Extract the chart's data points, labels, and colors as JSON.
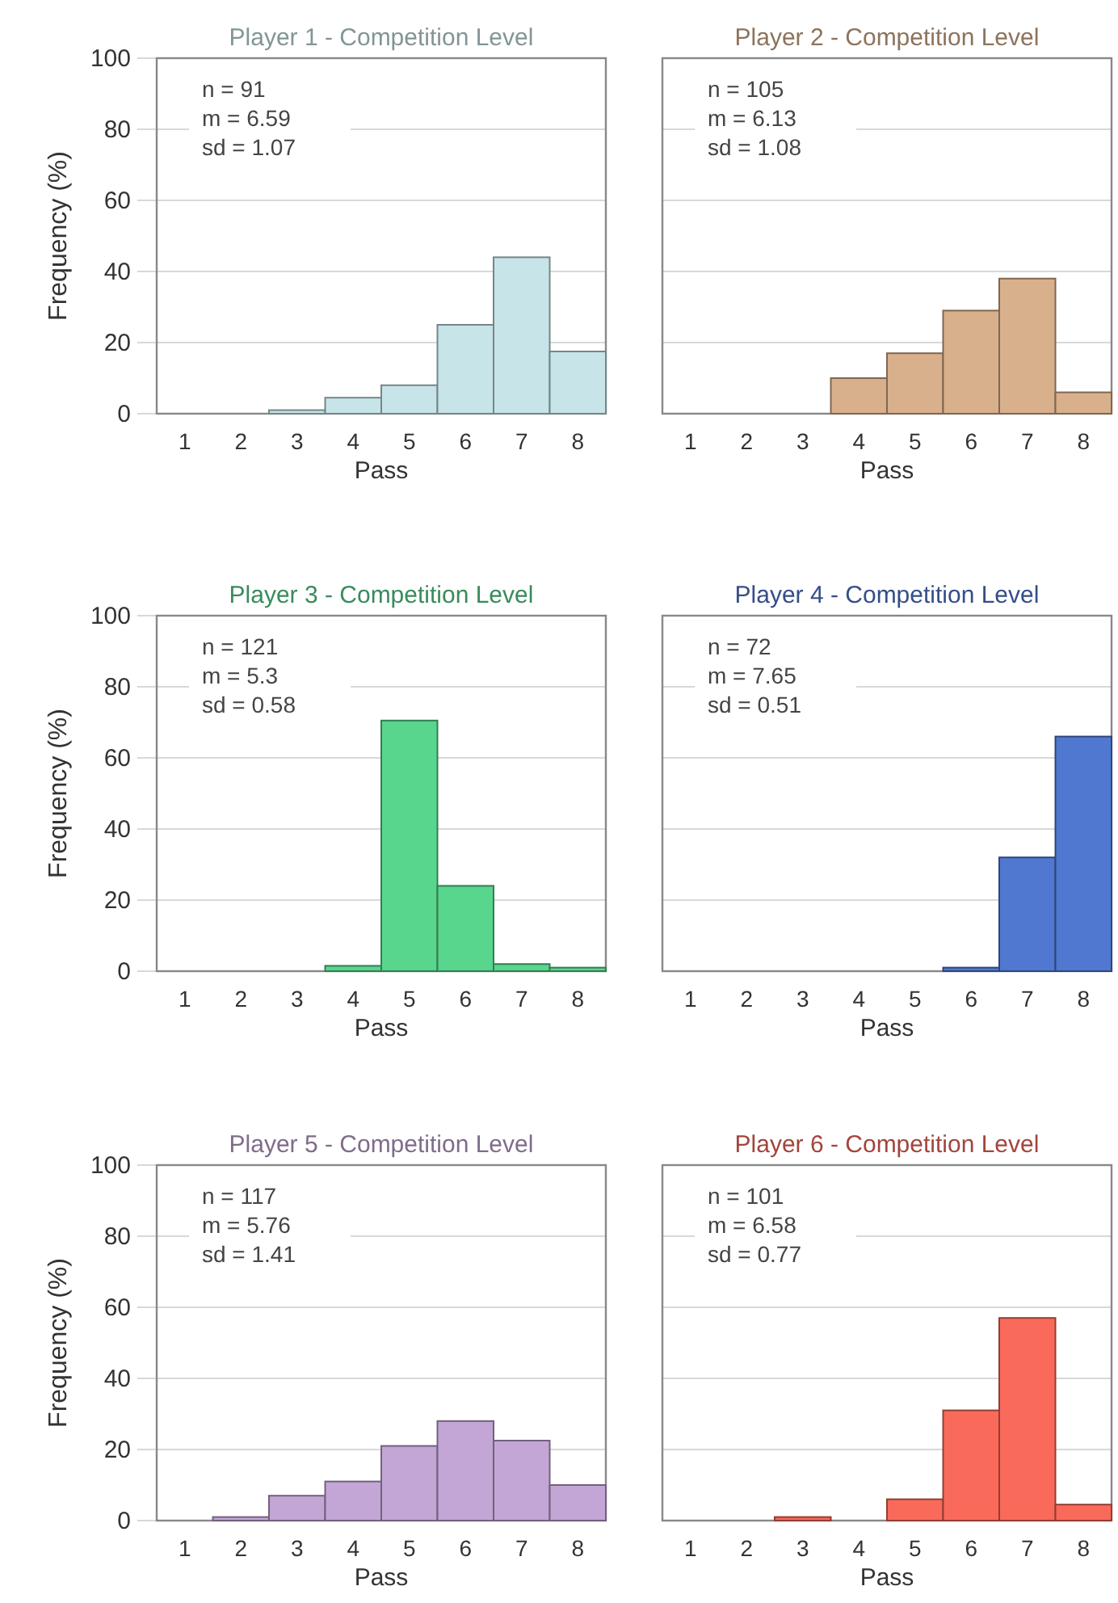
{
  "chart_data": [
    {
      "type": "histogram",
      "title": "Player 1 - Competition Level",
      "xlabel": "Pass",
      "ylabel": "Frequency (%)",
      "bins": [
        0.5,
        1.5,
        2.5,
        3.5,
        4.5,
        5.5,
        6.5,
        7.5,
        8.5
      ],
      "values": [
        0,
        0,
        1,
        4.5,
        8,
        25,
        44,
        17.5
      ],
      "color": "#c7e4e8",
      "xlim": [
        0.5,
        8.5
      ],
      "xticks": [
        1,
        2,
        3,
        4,
        5,
        6,
        7,
        8
      ],
      "ylim": [
        0,
        100
      ],
      "yticks": [
        0,
        20,
        40,
        60,
        80,
        100
      ],
      "grid": "y",
      "annotations": [
        "n = 91",
        "m = 6.59",
        "sd = 1.07"
      ]
    },
    {
      "type": "histogram",
      "title": "Player 2 - Competition Level",
      "xlabel": "Pass",
      "bins": [
        0.5,
        1.5,
        2.5,
        3.5,
        4.5,
        5.5,
        6.5,
        7.5,
        8.5
      ],
      "values": [
        0,
        0,
        0,
        10,
        17,
        29,
        38,
        6
      ],
      "color": "#d9b08c",
      "xlim": [
        0.5,
        8.5
      ],
      "xticks": [
        1,
        2,
        3,
        4,
        5,
        6,
        7,
        8
      ],
      "ylim": [
        0,
        100
      ],
      "yticks": [
        0,
        20,
        40,
        60,
        80,
        100
      ],
      "grid": "y",
      "tick_labels": "x",
      "annotations": [
        "n = 105",
        "m = 6.13",
        "sd = 1.08"
      ]
    },
    {
      "type": "histogram",
      "title": "Player 3 - Competition Level",
      "xlabel": "Pass",
      "ylabel": "Frequency (%)",
      "bins": [
        0.5,
        1.5,
        2.5,
        3.5,
        4.5,
        5.5,
        6.5,
        7.5,
        8.5
      ],
      "values": [
        0,
        0,
        0,
        1.5,
        70.5,
        24,
        2,
        1
      ],
      "color": "#58d68d",
      "xlim": [
        0.5,
        8.5
      ],
      "xticks": [
        1,
        2,
        3,
        4,
        5,
        6,
        7,
        8
      ],
      "ylim": [
        0,
        100
      ],
      "yticks": [
        0,
        20,
        40,
        60,
        80,
        100
      ],
      "grid": "y",
      "annotations": [
        "n = 121",
        "m = 5.3",
        "sd = 0.58"
      ]
    },
    {
      "type": "histogram",
      "title": "Player 4 - Competition Level",
      "xlabel": "Pass",
      "bins": [
        0.5,
        1.5,
        2.5,
        3.5,
        4.5,
        5.5,
        6.5,
        7.5,
        8.5
      ],
      "values": [
        0,
        0,
        0,
        0,
        0,
        1,
        32,
        66
      ],
      "color": "#5078d0",
      "xlim": [
        0.5,
        8.5
      ],
      "xticks": [
        1,
        2,
        3,
        4,
        5,
        6,
        7,
        8
      ],
      "ylim": [
        0,
        100
      ],
      "yticks": [
        0,
        20,
        40,
        60,
        80,
        100
      ],
      "grid": "y",
      "tick_labels": "x",
      "annotations": [
        "n = 72",
        "m = 7.65",
        "sd = 0.51"
      ]
    },
    {
      "type": "histogram",
      "title": "Player 5 - Competition Level",
      "xlabel": "Pass",
      "ylabel": "Frequency (%)",
      "bins": [
        0.5,
        1.5,
        2.5,
        3.5,
        4.5,
        5.5,
        6.5,
        7.5,
        8.5
      ],
      "values": [
        0,
        1,
        7,
        11,
        21,
        28,
        22.5,
        10
      ],
      "color": "#c3a6d6",
      "xlim": [
        0.5,
        8.5
      ],
      "xticks": [
        1,
        2,
        3,
        4,
        5,
        6,
        7,
        8
      ],
      "ylim": [
        0,
        100
      ],
      "yticks": [
        0,
        20,
        40,
        60,
        80,
        100
      ],
      "grid": "y",
      "annotations": [
        "n = 117",
        "m = 5.76",
        "sd = 1.41"
      ]
    },
    {
      "type": "histogram",
      "title": "Player 6 - Competition Level",
      "xlabel": "Pass",
      "bins": [
        0.5,
        1.5,
        2.5,
        3.5,
        4.5,
        5.5,
        6.5,
        7.5,
        8.5
      ],
      "values": [
        0,
        0,
        1,
        0,
        6,
        31,
        57,
        4.5
      ],
      "color": "#fa6a5a",
      "xlim": [
        0.5,
        8.5
      ],
      "xticks": [
        1,
        2,
        3,
        4,
        5,
        6,
        7,
        8
      ],
      "ylim": [
        0,
        100
      ],
      "yticks": [
        0,
        20,
        40,
        60,
        80,
        100
      ],
      "grid": "y",
      "tick_labels": "x",
      "annotations": [
        "n = 101",
        "m = 6.58",
        "sd = 0.77"
      ]
    }
  ]
}
